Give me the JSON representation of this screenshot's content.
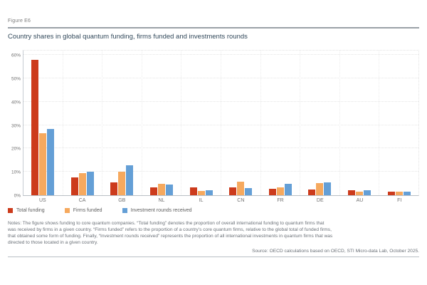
{
  "figure_label": "Figure E6",
  "title": "Country shares in global quantum funding, firms funded and investments rounds",
  "chart_data": {
    "type": "bar",
    "categories": [
      "US",
      "CA",
      "GB",
      "NL",
      "IL",
      "CN",
      "FR",
      "DE",
      "AU",
      "FI"
    ],
    "series": [
      {
        "name": "Total funding",
        "color": "#cc3b1c",
        "values": [
          58,
          7.5,
          5.5,
          3.5,
          3.4,
          3.3,
          2.6,
          2.4,
          2.0,
          1.5
        ]
      },
      {
        "name": "Firms funded",
        "color": "#f6a95e",
        "values": [
          26.5,
          9.5,
          10.0,
          4.8,
          1.7,
          5.9,
          3.5,
          5.3,
          1.4,
          1.6
        ]
      },
      {
        "name": "Investment rounds received",
        "color": "#649fd6",
        "values": [
          28.5,
          10.0,
          12.8,
          4.7,
          2.1,
          3.0,
          4.8,
          5.5,
          2.2,
          1.5
        ]
      }
    ],
    "title": "Country shares in global quantum funding, firms funded and investments rounds",
    "xlabel": "",
    "ylabel": "",
    "ylim": [
      0,
      60
    ],
    "ytick_step": 10,
    "ytick_labels": [
      "0%",
      "10%",
      "20%",
      "30%",
      "40%",
      "50%",
      "60%"
    ],
    "grid": true,
    "legend_position": "bottom-left"
  },
  "notes": {
    "lines": [
      "Notes: The figure shows funding to core quantum companies. “Total funding” denotes the proportion of overall international funding to quantum firms that",
      "was received by firms in a given country. “Firms funded” refers to the proportion of a country’s core quantum firms, relative to the global total of funded firms,",
      "that obtained some form of funding. Finally, “Investment rounds received” represents the proportion of all international investments in quantum firms that was",
      "directed to those located in a given country."
    ]
  },
  "source": "Source: OECD calculations based on OECD, STI Micro-data Lab, October 2025."
}
